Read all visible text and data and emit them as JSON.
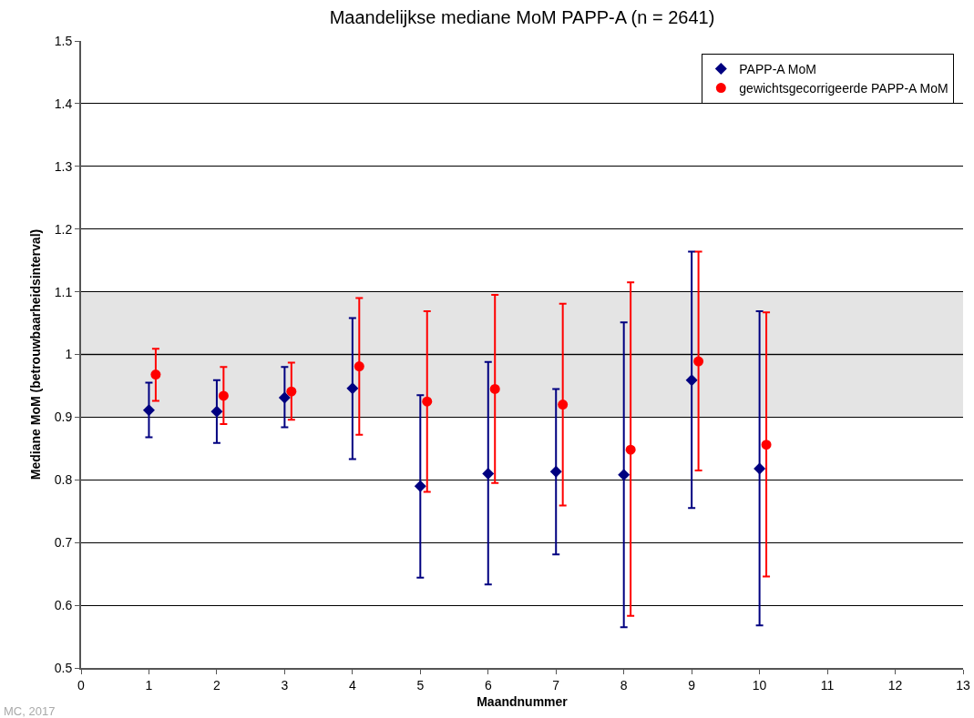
{
  "chart_data": {
    "type": "scatter",
    "title": "Maandelijkse mediane MoM PAPP-A (n = 2641)",
    "xlabel": "Maandnummer",
    "ylabel": "Mediane MoM (betrouwbaarheidsinterval)",
    "xlim": [
      0,
      13
    ],
    "xticks": [
      0,
      1,
      2,
      3,
      4,
      5,
      6,
      7,
      8,
      9,
      10,
      11,
      12,
      13
    ],
    "ylim": [
      0.5,
      1.5
    ],
    "yticks": [
      0.5,
      0.6,
      0.7,
      0.8,
      0.9,
      1,
      1.1,
      1.2,
      1.3,
      1.4,
      1.5
    ],
    "grid": "y",
    "legend": "top right",
    "series": [
      {
        "name": "PAPP-A MoM",
        "color": "#000080",
        "marker": "diamond",
        "x": [
          1,
          2,
          3,
          4,
          5,
          6,
          7,
          8,
          9,
          10
        ],
        "values": [
          0.911,
          0.909,
          0.931,
          0.946,
          0.79,
          0.81,
          0.813,
          0.808,
          0.959,
          0.818
        ],
        "errors": [
          [
            0.868,
            0.955
          ],
          [
            0.859,
            0.959
          ],
          [
            0.884,
            0.98
          ],
          [
            0.833,
            1.058
          ],
          [
            0.644,
            0.935
          ],
          [
            0.633,
            0.988
          ],
          [
            0.681,
            0.945
          ],
          [
            0.565,
            1.051
          ],
          [
            0.755,
            1.164
          ],
          [
            0.568,
            1.069
          ]
        ]
      },
      {
        "name": "gewichtsgecorrigeerde PAPP-A MoM",
        "color": "#ff0000",
        "marker": "circle",
        "x": [
          1.1,
          2.1,
          3.1,
          4.1,
          5.1,
          6.1,
          7.1,
          8.1,
          9.1,
          10.1
        ],
        "values": [
          0.968,
          0.934,
          0.941,
          0.981,
          0.925,
          0.945,
          0.92,
          0.848,
          0.989,
          0.856
        ],
        "errors": [
          [
            0.926,
            1.009
          ],
          [
            0.889,
            0.98
          ],
          [
            0.896,
            0.987
          ],
          [
            0.872,
            1.09
          ],
          [
            0.781,
            1.069
          ],
          [
            0.795,
            1.095
          ],
          [
            0.759,
            1.081
          ],
          [
            0.583,
            1.115
          ],
          [
            0.815,
            1.164
          ],
          [
            0.646,
            1.067
          ]
        ]
      }
    ],
    "bands": [
      {
        "axis": "y",
        "from": 0.9,
        "to": 1.1,
        "color": "#e4e4e4"
      }
    ],
    "ref_lines": [
      {
        "axis": "y",
        "value": 1,
        "color": "#8c8c8c"
      }
    ],
    "annotations": [
      "MC, 2017"
    ]
  }
}
